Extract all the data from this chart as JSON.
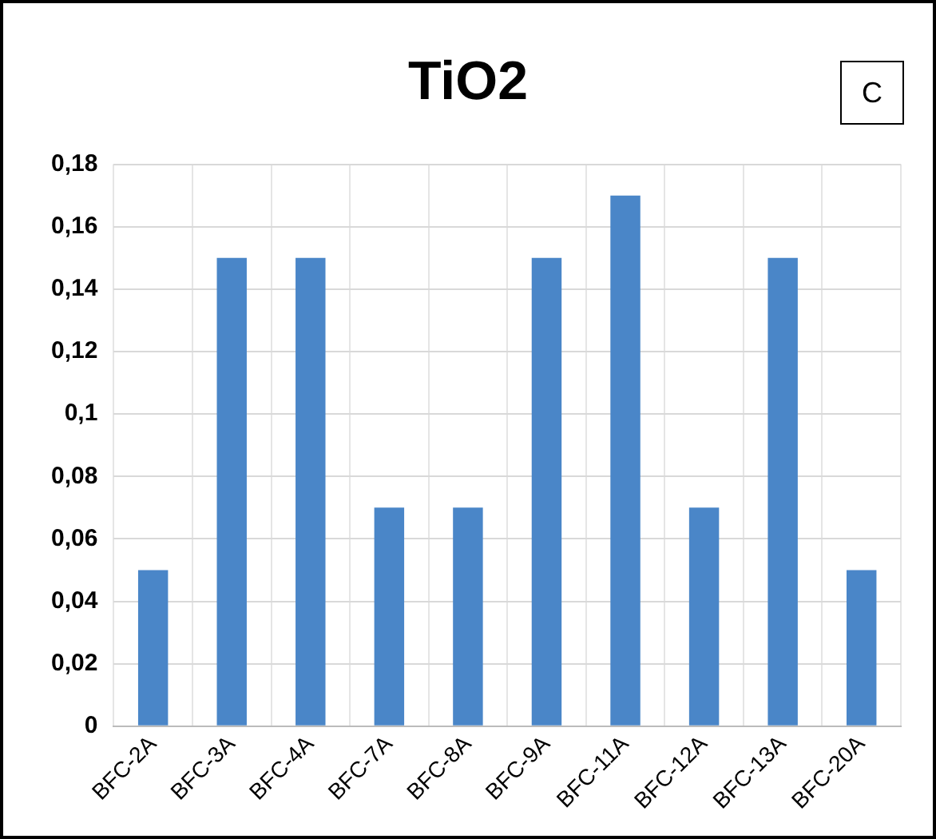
{
  "chart_data": {
    "type": "bar",
    "title": "TiO2",
    "categories": [
      "BFC-2A",
      "BFC-3A",
      "BFC-4A",
      "BFC-7A",
      "BFC-8A",
      "BFC-9A",
      "BFC-11A",
      "BFC-12A",
      "BFC-13A",
      "BFC-20A"
    ],
    "values": [
      0.05,
      0.15,
      0.15,
      0.07,
      0.07,
      0.15,
      0.17,
      0.07,
      0.15,
      0.05
    ],
    "color": "#4a86c8",
    "ylim": [
      0,
      0.18
    ],
    "yticks": [
      0,
      {
        "value": 0.02,
        "label": "0,02"
      },
      {
        "value": 0.04,
        "label": "0,04"
      },
      {
        "value": 0.06,
        "label": "0,06"
      },
      {
        "value": 0.08,
        "label": "0,08"
      },
      {
        "value": 0.1,
        "label": "0,1"
      },
      {
        "value": 0.12,
        "label": "0,12"
      },
      {
        "value": 0.14,
        "label": "0,14"
      },
      {
        "value": 0.16,
        "label": "0,16"
      },
      {
        "value": 0.18,
        "label": "0,18"
      }
    ],
    "grid": true,
    "annotations": [
      "C"
    ]
  }
}
